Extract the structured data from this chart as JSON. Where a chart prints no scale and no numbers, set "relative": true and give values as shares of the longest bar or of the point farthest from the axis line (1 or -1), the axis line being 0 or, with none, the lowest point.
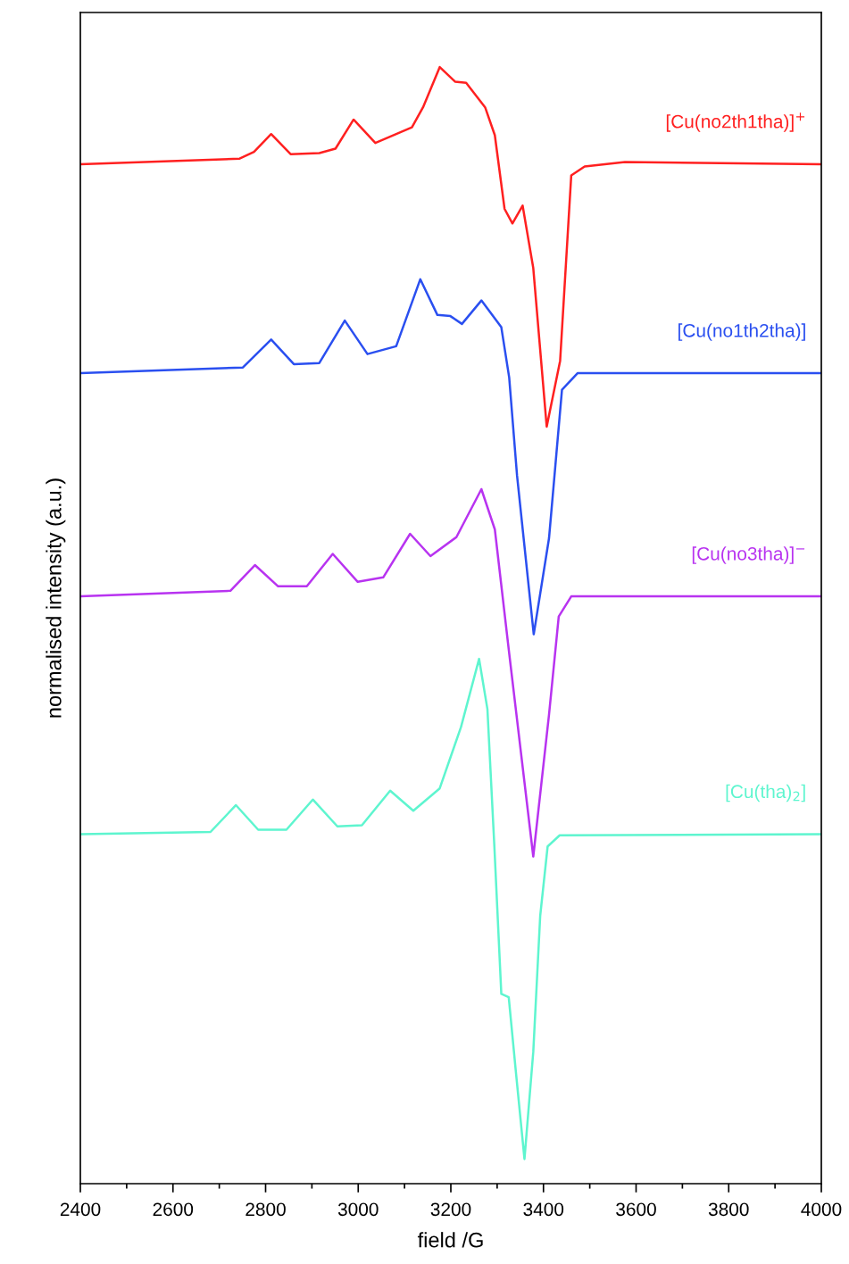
{
  "chart_data": {
    "type": "line",
    "relative": true,
    "xlabel": "field /G",
    "ylabel": "normalised intensity (a.u.)",
    "xlim": [
      2400,
      4000
    ],
    "xticks": [
      2400,
      2600,
      2800,
      3000,
      3200,
      3400,
      3600,
      3800,
      4000
    ],
    "grid": false,
    "legend": false,
    "marker": "none",
    "line_style": "solid",
    "series": [
      {
        "name": "[Cu(no2th1tha)]$^{+}$",
        "color": "#ff2020",
        "x": [
          2400,
          2744,
          2775,
          2812,
          2854,
          2916,
          2951,
          2990,
          3037,
          3116,
          3140,
          3176,
          3209,
          3233,
          3274,
          3295,
          3316,
          3333,
          3355,
          3378,
          3407,
          3436,
          3460,
          3489,
          3576,
          4000
        ],
        "values": [
          0.913,
          0.918,
          0.924,
          0.94,
          0.922,
          0.923,
          0.927,
          0.953,
          0.932,
          0.946,
          0.964,
          1.0,
          0.987,
          0.986,
          0.964,
          0.939,
          0.873,
          0.86,
          0.876,
          0.82,
          0.678,
          0.737,
          0.903,
          0.911,
          0.915,
          0.913
        ]
      },
      {
        "name": "[Cu(no1th2tha)]",
        "color": "#2a4ff0",
        "x": [
          2400,
          2751,
          2812,
          2861,
          2916,
          2971,
          3020,
          3082,
          3134,
          3171,
          3199,
          3224,
          3266,
          3309,
          3326,
          3343,
          3379,
          3412,
          3440,
          3474,
          4000
        ],
        "values": [
          0.726,
          0.731,
          0.756,
          0.734,
          0.735,
          0.773,
          0.743,
          0.75,
          0.81,
          0.778,
          0.777,
          0.77,
          0.791,
          0.767,
          0.722,
          0.634,
          0.492,
          0.578,
          0.711,
          0.726,
          0.726
        ]
      },
      {
        "name": "[Cu(no3tha)]$^{−}$",
        "color": "#b833f0",
        "x": [
          2400,
          2724,
          2777,
          2827,
          2889,
          2945,
          2999,
          3054,
          3112,
          3156,
          3212,
          3266,
          3295,
          3326,
          3378,
          3412,
          3433,
          3460,
          4000
        ],
        "values": [
          0.526,
          0.531,
          0.554,
          0.535,
          0.535,
          0.564,
          0.539,
          0.543,
          0.582,
          0.562,
          0.579,
          0.622,
          0.586,
          0.475,
          0.293,
          0.42,
          0.508,
          0.526,
          0.526
        ]
      },
      {
        "name": "[Cu(tha)$_{2}$]",
        "color": "#5ef5cf",
        "x": [
          2400,
          2681,
          2736,
          2784,
          2845,
          2902,
          2955,
          3008,
          3069,
          3119,
          3176,
          3222,
          3261,
          3279,
          3294,
          3309,
          3325,
          3340,
          3359,
          3378,
          3393,
          3409,
          3435,
          4000
        ],
        "values": [
          0.313,
          0.315,
          0.339,
          0.317,
          0.317,
          0.344,
          0.32,
          0.321,
          0.352,
          0.334,
          0.354,
          0.409,
          0.47,
          0.425,
          0.302,
          0.17,
          0.167,
          0.102,
          0.022,
          0.118,
          0.24,
          0.302,
          0.312,
          0.313
        ]
      }
    ]
  }
}
